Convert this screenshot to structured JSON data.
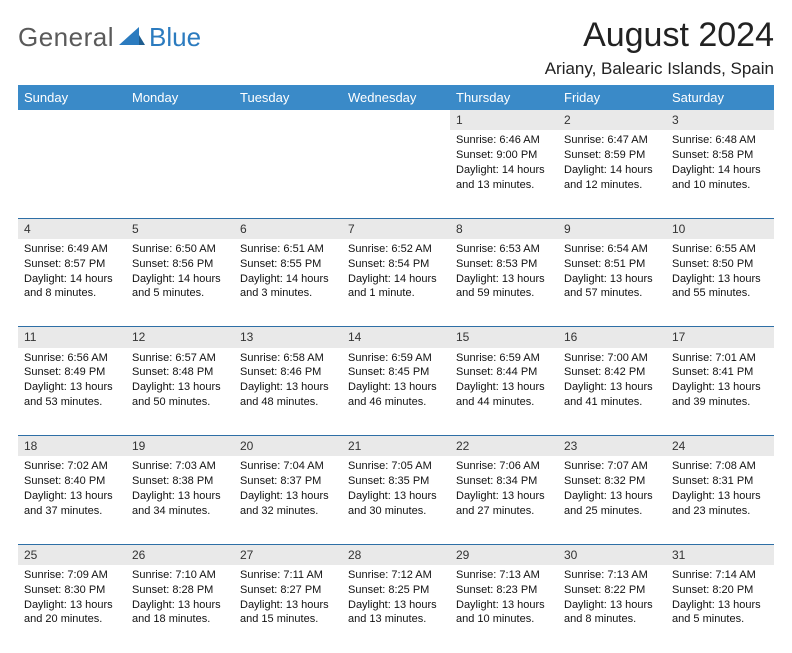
{
  "brand": {
    "part1": "General",
    "part2": "Blue"
  },
  "title": "August 2024",
  "location": "Ariany, Balearic Islands, Spain",
  "colors": {
    "header_bg": "#3a8ac8",
    "header_text": "#ffffff",
    "daynum_bg": "#e9e9e9",
    "row_border": "#2e6fa6",
    "logo_gray": "#5a5a5a",
    "logo_blue": "#2b7bbf"
  },
  "weekday_labels": [
    "Sunday",
    "Monday",
    "Tuesday",
    "Wednesday",
    "Thursday",
    "Friday",
    "Saturday"
  ],
  "weeks": [
    {
      "nums": [
        "",
        "",
        "",
        "",
        "1",
        "2",
        "3"
      ],
      "cells": [
        null,
        null,
        null,
        null,
        {
          "sunrise": "Sunrise: 6:46 AM",
          "sunset": "Sunset: 9:00 PM",
          "day1": "Daylight: 14 hours",
          "day2": "and 13 minutes."
        },
        {
          "sunrise": "Sunrise: 6:47 AM",
          "sunset": "Sunset: 8:59 PM",
          "day1": "Daylight: 14 hours",
          "day2": "and 12 minutes."
        },
        {
          "sunrise": "Sunrise: 6:48 AM",
          "sunset": "Sunset: 8:58 PM",
          "day1": "Daylight: 14 hours",
          "day2": "and 10 minutes."
        }
      ]
    },
    {
      "nums": [
        "4",
        "5",
        "6",
        "7",
        "8",
        "9",
        "10"
      ],
      "cells": [
        {
          "sunrise": "Sunrise: 6:49 AM",
          "sunset": "Sunset: 8:57 PM",
          "day1": "Daylight: 14 hours",
          "day2": "and 8 minutes."
        },
        {
          "sunrise": "Sunrise: 6:50 AM",
          "sunset": "Sunset: 8:56 PM",
          "day1": "Daylight: 14 hours",
          "day2": "and 5 minutes."
        },
        {
          "sunrise": "Sunrise: 6:51 AM",
          "sunset": "Sunset: 8:55 PM",
          "day1": "Daylight: 14 hours",
          "day2": "and 3 minutes."
        },
        {
          "sunrise": "Sunrise: 6:52 AM",
          "sunset": "Sunset: 8:54 PM",
          "day1": "Daylight: 14 hours",
          "day2": "and 1 minute."
        },
        {
          "sunrise": "Sunrise: 6:53 AM",
          "sunset": "Sunset: 8:53 PM",
          "day1": "Daylight: 13 hours",
          "day2": "and 59 minutes."
        },
        {
          "sunrise": "Sunrise: 6:54 AM",
          "sunset": "Sunset: 8:51 PM",
          "day1": "Daylight: 13 hours",
          "day2": "and 57 minutes."
        },
        {
          "sunrise": "Sunrise: 6:55 AM",
          "sunset": "Sunset: 8:50 PM",
          "day1": "Daylight: 13 hours",
          "day2": "and 55 minutes."
        }
      ]
    },
    {
      "nums": [
        "11",
        "12",
        "13",
        "14",
        "15",
        "16",
        "17"
      ],
      "cells": [
        {
          "sunrise": "Sunrise: 6:56 AM",
          "sunset": "Sunset: 8:49 PM",
          "day1": "Daylight: 13 hours",
          "day2": "and 53 minutes."
        },
        {
          "sunrise": "Sunrise: 6:57 AM",
          "sunset": "Sunset: 8:48 PM",
          "day1": "Daylight: 13 hours",
          "day2": "and 50 minutes."
        },
        {
          "sunrise": "Sunrise: 6:58 AM",
          "sunset": "Sunset: 8:46 PM",
          "day1": "Daylight: 13 hours",
          "day2": "and 48 minutes."
        },
        {
          "sunrise": "Sunrise: 6:59 AM",
          "sunset": "Sunset: 8:45 PM",
          "day1": "Daylight: 13 hours",
          "day2": "and 46 minutes."
        },
        {
          "sunrise": "Sunrise: 6:59 AM",
          "sunset": "Sunset: 8:44 PM",
          "day1": "Daylight: 13 hours",
          "day2": "and 44 minutes."
        },
        {
          "sunrise": "Sunrise: 7:00 AM",
          "sunset": "Sunset: 8:42 PM",
          "day1": "Daylight: 13 hours",
          "day2": "and 41 minutes."
        },
        {
          "sunrise": "Sunrise: 7:01 AM",
          "sunset": "Sunset: 8:41 PM",
          "day1": "Daylight: 13 hours",
          "day2": "and 39 minutes."
        }
      ]
    },
    {
      "nums": [
        "18",
        "19",
        "20",
        "21",
        "22",
        "23",
        "24"
      ],
      "cells": [
        {
          "sunrise": "Sunrise: 7:02 AM",
          "sunset": "Sunset: 8:40 PM",
          "day1": "Daylight: 13 hours",
          "day2": "and 37 minutes."
        },
        {
          "sunrise": "Sunrise: 7:03 AM",
          "sunset": "Sunset: 8:38 PM",
          "day1": "Daylight: 13 hours",
          "day2": "and 34 minutes."
        },
        {
          "sunrise": "Sunrise: 7:04 AM",
          "sunset": "Sunset: 8:37 PM",
          "day1": "Daylight: 13 hours",
          "day2": "and 32 minutes."
        },
        {
          "sunrise": "Sunrise: 7:05 AM",
          "sunset": "Sunset: 8:35 PM",
          "day1": "Daylight: 13 hours",
          "day2": "and 30 minutes."
        },
        {
          "sunrise": "Sunrise: 7:06 AM",
          "sunset": "Sunset: 8:34 PM",
          "day1": "Daylight: 13 hours",
          "day2": "and 27 minutes."
        },
        {
          "sunrise": "Sunrise: 7:07 AM",
          "sunset": "Sunset: 8:32 PM",
          "day1": "Daylight: 13 hours",
          "day2": "and 25 minutes."
        },
        {
          "sunrise": "Sunrise: 7:08 AM",
          "sunset": "Sunset: 8:31 PM",
          "day1": "Daylight: 13 hours",
          "day2": "and 23 minutes."
        }
      ]
    },
    {
      "nums": [
        "25",
        "26",
        "27",
        "28",
        "29",
        "30",
        "31"
      ],
      "cells": [
        {
          "sunrise": "Sunrise: 7:09 AM",
          "sunset": "Sunset: 8:30 PM",
          "day1": "Daylight: 13 hours",
          "day2": "and 20 minutes."
        },
        {
          "sunrise": "Sunrise: 7:10 AM",
          "sunset": "Sunset: 8:28 PM",
          "day1": "Daylight: 13 hours",
          "day2": "and 18 minutes."
        },
        {
          "sunrise": "Sunrise: 7:11 AM",
          "sunset": "Sunset: 8:27 PM",
          "day1": "Daylight: 13 hours",
          "day2": "and 15 minutes."
        },
        {
          "sunrise": "Sunrise: 7:12 AM",
          "sunset": "Sunset: 8:25 PM",
          "day1": "Daylight: 13 hours",
          "day2": "and 13 minutes."
        },
        {
          "sunrise": "Sunrise: 7:13 AM",
          "sunset": "Sunset: 8:23 PM",
          "day1": "Daylight: 13 hours",
          "day2": "and 10 minutes."
        },
        {
          "sunrise": "Sunrise: 7:13 AM",
          "sunset": "Sunset: 8:22 PM",
          "day1": "Daylight: 13 hours",
          "day2": "and 8 minutes."
        },
        {
          "sunrise": "Sunrise: 7:14 AM",
          "sunset": "Sunset: 8:20 PM",
          "day1": "Daylight: 13 hours",
          "day2": "and 5 minutes."
        }
      ]
    }
  ]
}
